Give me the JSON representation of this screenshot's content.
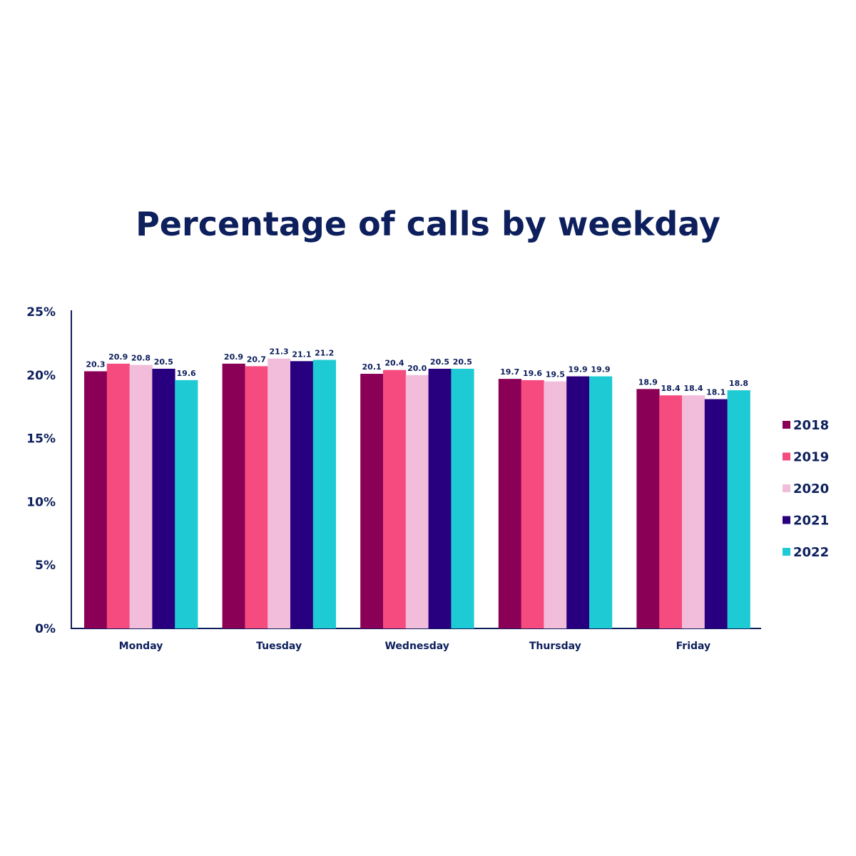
{
  "chart_data": {
    "type": "bar",
    "title": "Percentage of calls by weekday",
    "categories": [
      "Monday",
      "Tuesday",
      "Wednesday",
      "Thursday",
      "Friday"
    ],
    "series": [
      {
        "name": "2018",
        "color": "#8a0057",
        "values": [
          20.3,
          20.9,
          20.1,
          19.7,
          18.9
        ]
      },
      {
        "name": "2019",
        "color": "#f54b7f",
        "values": [
          20.9,
          20.7,
          20.4,
          19.6,
          18.4
        ]
      },
      {
        "name": "2020",
        "color": "#f2bddb",
        "values": [
          20.8,
          21.3,
          20.0,
          19.5,
          18.4
        ]
      },
      {
        "name": "2021",
        "color": "#28007f",
        "values": [
          20.5,
          21.1,
          20.5,
          19.9,
          18.1
        ]
      },
      {
        "name": "2022",
        "color": "#1ecad3",
        "values": [
          19.6,
          21.2,
          20.5,
          19.9,
          18.8
        ]
      }
    ],
    "value_labels": [
      [
        "20.3",
        "20.9",
        "20.1",
        "19.7",
        "18.9"
      ],
      [
        "20.9",
        "20.7",
        "20.4",
        "19.6",
        "18.4"
      ],
      [
        "20.8",
        "21.3",
        "20.0",
        "19.5",
        "18.4"
      ],
      [
        "20.5",
        "21.1",
        "20.5",
        "19.9",
        "18.1"
      ],
      [
        "19.6",
        "21.2",
        "20.5",
        "19.9",
        "18.8"
      ]
    ],
    "y_ticks": [
      0,
      5,
      10,
      15,
      20,
      25
    ],
    "y_tick_labels": [
      "0%",
      "5%",
      "10%",
      "15%",
      "20%",
      "25%"
    ],
    "ylim": [
      0,
      25
    ],
    "grid": false,
    "legend_position": "right"
  }
}
